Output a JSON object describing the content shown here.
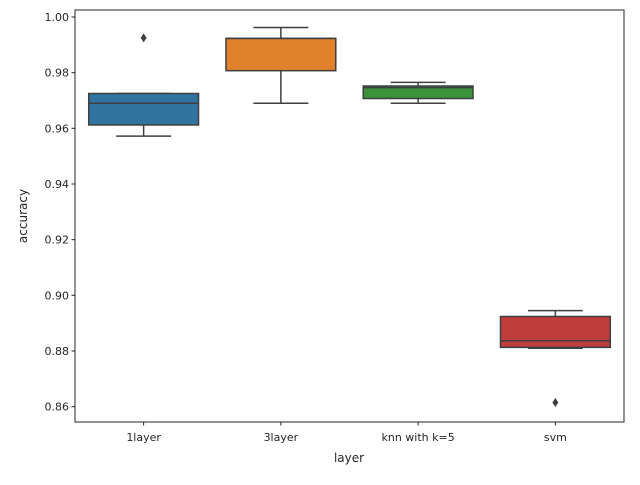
{
  "chart_data": {
    "type": "box",
    "xlabel": "layer",
    "ylabel": "accuracy",
    "ylim": [
      0.8545,
      1.0025
    ],
    "yticks": [
      0.86,
      0.88,
      0.9,
      0.92,
      0.94,
      0.96,
      0.98,
      1.0
    ],
    "ytick_labels": [
      "0.86",
      "0.88",
      "0.90",
      "0.92",
      "0.94",
      "0.96",
      "0.98",
      "1.00"
    ],
    "grid": false,
    "categories": [
      "1layer",
      "3layer",
      "knn with k=5",
      "svm"
    ],
    "boxes": [
      {
        "category": "1layer",
        "color": "#3274a1",
        "whislo": 0.9572,
        "q1": 0.9612,
        "med": 0.969,
        "q3": 0.9725,
        "whishi": 0.9725,
        "fliers": [
          0.9925
        ]
      },
      {
        "category": "3layer",
        "color": "#e1812c",
        "whislo": 0.969,
        "q1": 0.9807,
        "med": 0.9923,
        "q3": 0.9923,
        "whishi": 0.9962,
        "fliers": []
      },
      {
        "category": "knn with k=5",
        "color": "#3a923a",
        "whislo": 0.969,
        "q1": 0.9707,
        "med": 0.9746,
        "q3": 0.9752,
        "whishi": 0.9765,
        "fliers": []
      },
      {
        "category": "svm",
        "color": "#c03d3e",
        "whislo": 0.881,
        "q1": 0.8813,
        "med": 0.8837,
        "q3": 0.8924,
        "whishi": 0.8945,
        "fliers": [
          0.8615
        ]
      }
    ]
  }
}
